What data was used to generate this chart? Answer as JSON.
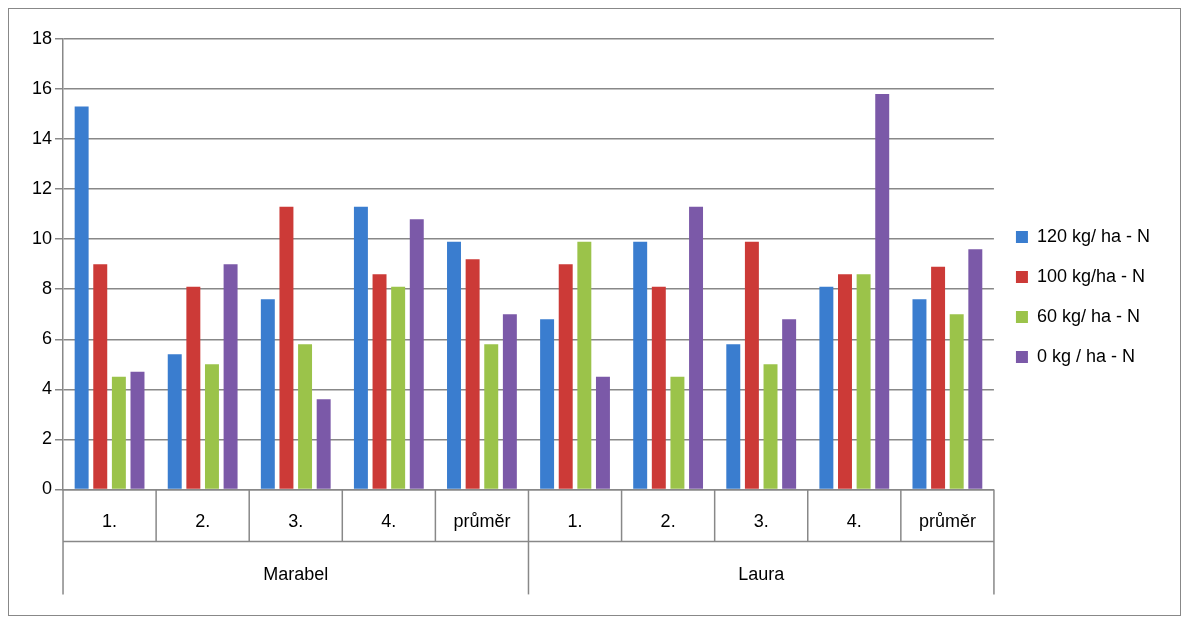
{
  "chart_data": {
    "type": "bar",
    "categories": [
      "1.",
      "2.",
      "3.",
      "4.",
      "průměr",
      "1.",
      "2.",
      "3.",
      "4.",
      "průměr"
    ],
    "annotations": [
      "Marabel",
      "Laura"
    ],
    "series": [
      {
        "name": "120 kg/ ha - N",
        "color": "#3a7dcf",
        "values": [
          15.3,
          5.4,
          7.6,
          11.3,
          9.9,
          6.8,
          9.9,
          5.8,
          8.1,
          7.6
        ]
      },
      {
        "name": "100 kg/ha - N",
        "color": "#cc3a37",
        "values": [
          9.0,
          8.1,
          11.3,
          8.6,
          9.2,
          9.0,
          8.1,
          9.9,
          8.6,
          8.9
        ]
      },
      {
        "name": "60 kg/ ha - N",
        "color": "#9bc34a",
        "values": [
          4.5,
          5.0,
          5.8,
          8.1,
          5.8,
          9.9,
          4.5,
          5.0,
          8.6,
          7.0
        ]
      },
      {
        "name": "0 kg / ha - N",
        "color": "#7b59a8",
        "values": [
          4.7,
          9.0,
          3.6,
          10.8,
          7.0,
          4.5,
          11.3,
          6.8,
          15.8,
          9.6
        ]
      }
    ],
    "ylim": [
      0,
      18
    ],
    "yticks": [
      0,
      2,
      4,
      6,
      8,
      10,
      12,
      14,
      16,
      18
    ],
    "grid": "y",
    "legend": "right"
  }
}
